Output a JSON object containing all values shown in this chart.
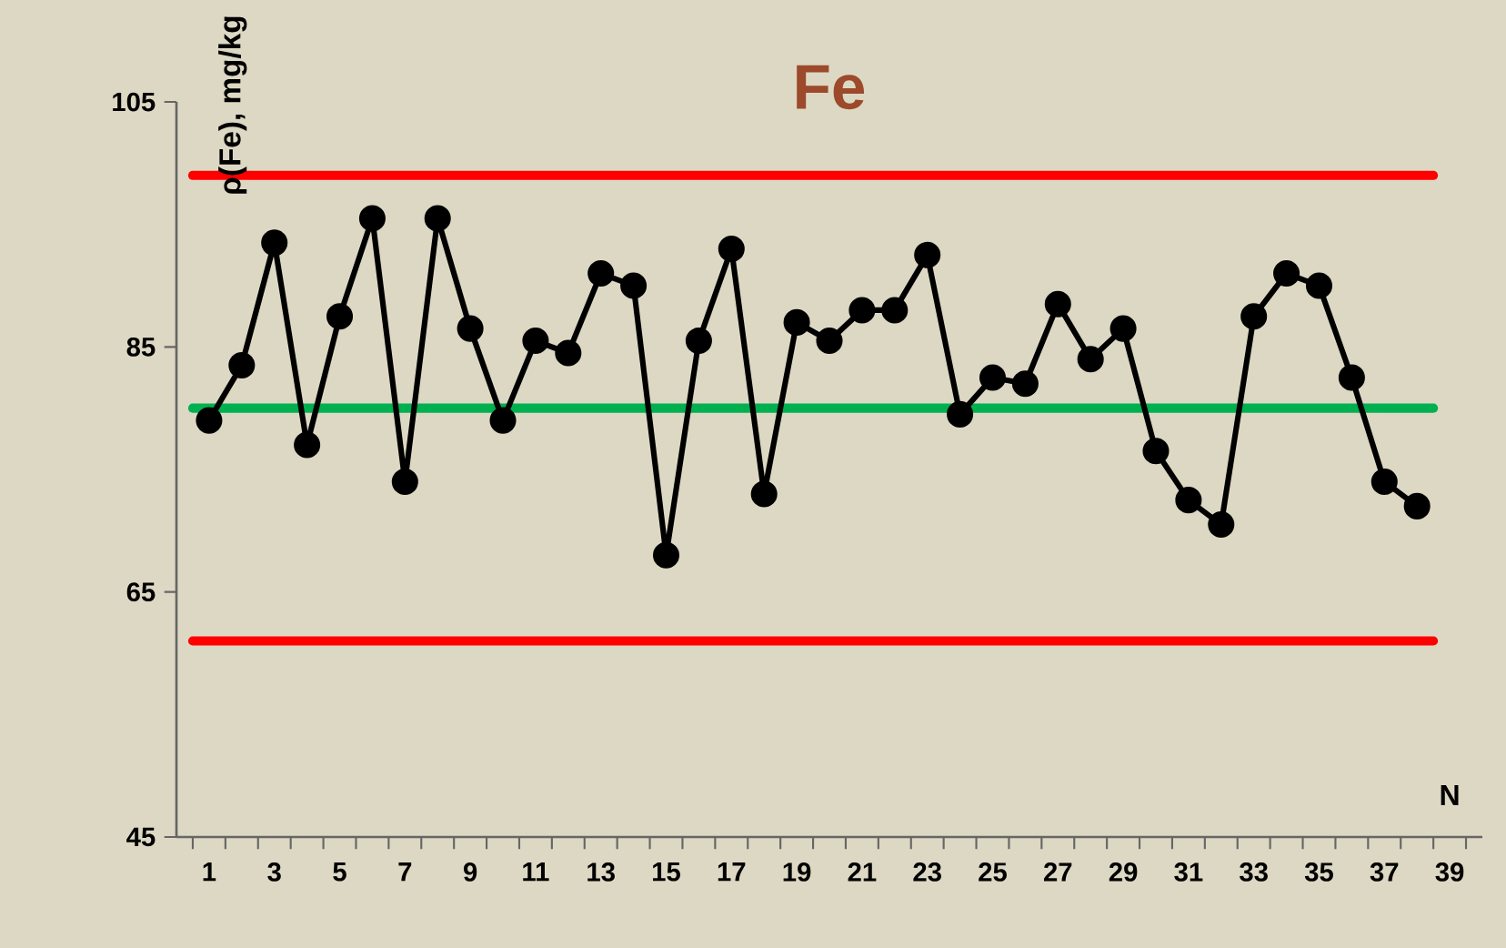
{
  "chart_data": {
    "type": "line",
    "title": "Fe",
    "ylabel": "ρ(Fe), mg/kg",
    "xlabel": "N",
    "categories": [
      "1",
      null,
      "3",
      null,
      "5",
      null,
      "7",
      null,
      "9",
      null,
      "11",
      null,
      "13",
      null,
      "15",
      null,
      "17",
      null,
      "19",
      null,
      "21",
      null,
      "23",
      null,
      "25",
      null,
      "27",
      null,
      "29",
      null,
      "31",
      null,
      "33",
      null,
      "35",
      null,
      "37",
      null,
      "39"
    ],
    "series": [
      {
        "color": "#000000",
        "values": [
          79,
          83.5,
          93.5,
          77,
          87.5,
          95.5,
          74,
          95.5,
          86.5,
          79,
          85.5,
          84.5,
          91,
          90,
          68,
          85.5,
          93,
          73,
          87,
          85.5,
          88,
          88,
          92.5,
          79.5,
          82.5,
          82,
          88.5,
          84,
          86.5,
          76.5,
          72.5,
          70.5,
          87.5,
          91,
          90,
          82.5,
          74,
          72,
          null
        ]
      }
    ],
    "ylim": [
      45,
      105
    ],
    "yticks": [
      45,
      65,
      85,
      105
    ],
    "grid": false,
    "marker": "circle",
    "line_style": "solid",
    "ref_lines": [
      {
        "axis": "y",
        "value": 99,
        "color": "#ff0000"
      },
      {
        "axis": "y",
        "value": 61,
        "color": "#ff0000"
      },
      {
        "axis": "y",
        "value": 80,
        "color": "#00b050"
      }
    ]
  }
}
